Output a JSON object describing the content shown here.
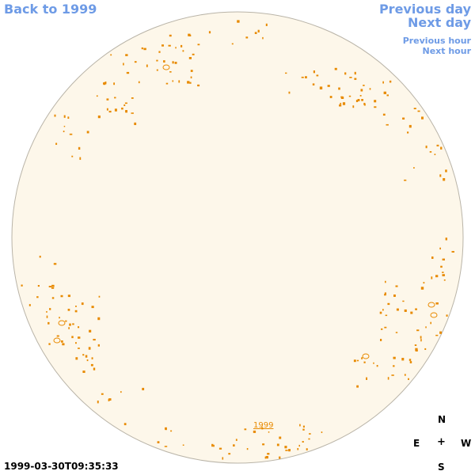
{
  "nav": {
    "back_label": "Back to 1999",
    "prev_day_label": "Previous day",
    "next_day_label": "Next day",
    "prev_hour_label": "Previous hour",
    "next_hour_label": "Next hour"
  },
  "compass": {
    "north": "N",
    "east": "E",
    "center": "+",
    "west": "W",
    "south": "S"
  },
  "timestamp": "1999-03-30T09:35:33",
  "disk": {
    "year_label": "1999"
  },
  "colors": {
    "link": "#6e9be6",
    "disk_fill": "#fdf7ea",
    "disk_stroke": "#b9b4a8",
    "feature": "#e88a00"
  }
}
